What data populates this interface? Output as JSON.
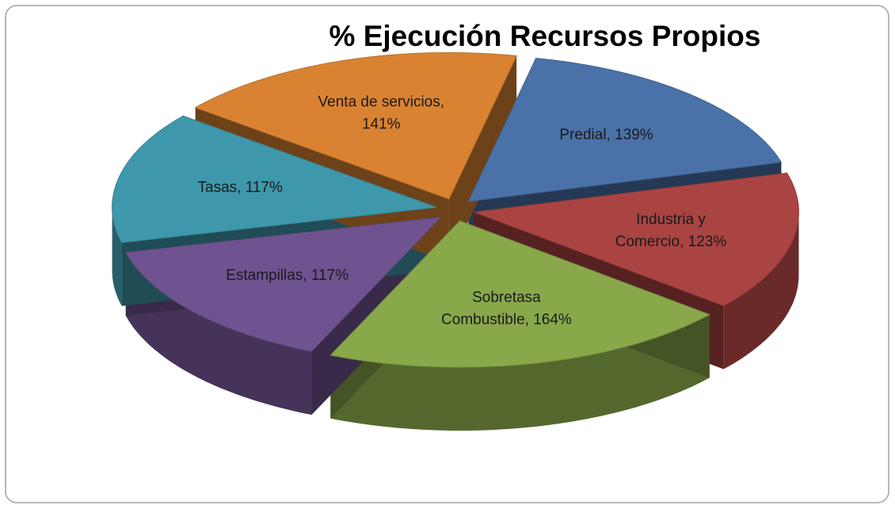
{
  "chart_data": {
    "type": "pie",
    "title": "% Ejecución Recursos Propios",
    "values": [
      139,
      123,
      164,
      117,
      117,
      141
    ],
    "value_labels": [
      [
        "Predial, 139%"
      ],
      [
        "Industria y",
        "Comercio, 123%"
      ],
      [
        "Sobretasa",
        "Combustible, 164%"
      ],
      [
        "Estampillas, 117%"
      ],
      [
        "Tasas, 117%"
      ],
      [
        "Venta de servicios,",
        "141%"
      ]
    ],
    "colors": [
      "#4a72a8",
      "#a94442",
      "#88a84a",
      "#6f5390",
      "#3f97ab",
      "#d98332"
    ]
  }
}
